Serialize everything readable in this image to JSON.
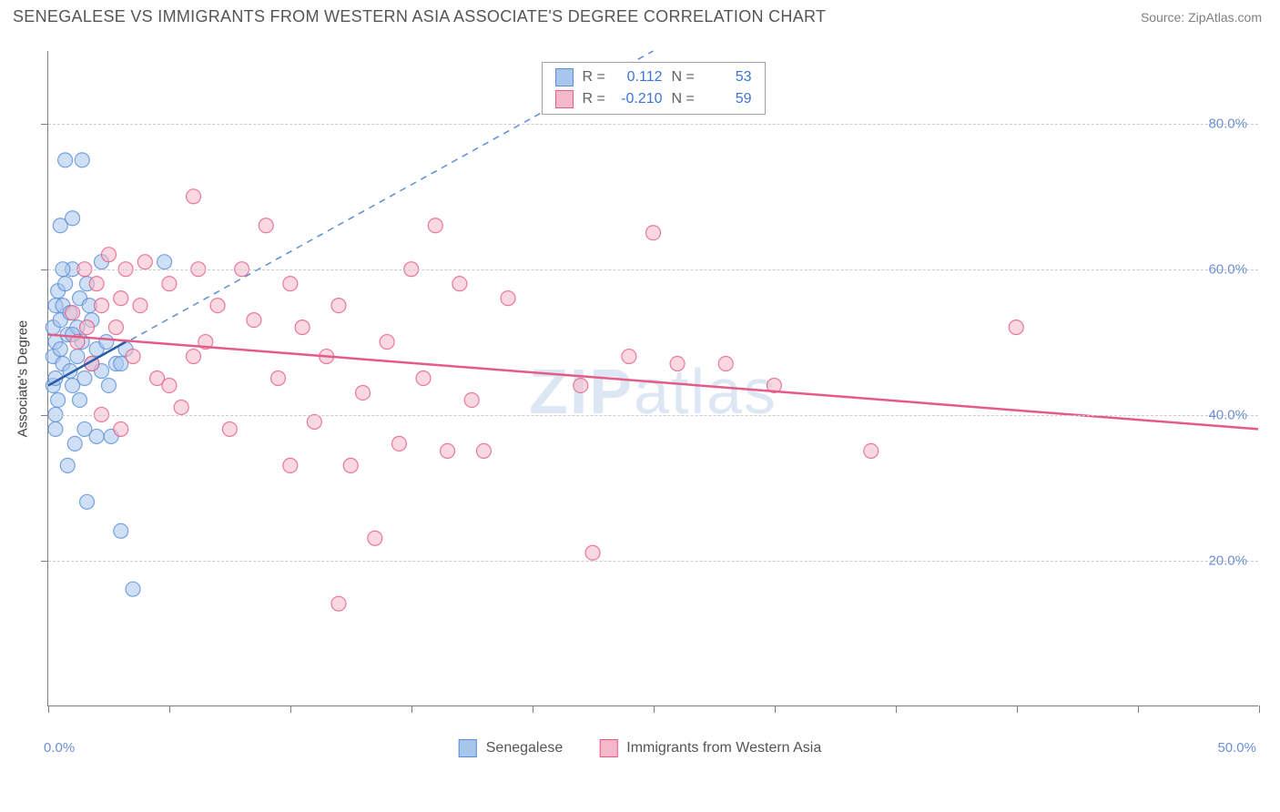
{
  "title": "SENEGALESE VS IMMIGRANTS FROM WESTERN ASIA ASSOCIATE'S DEGREE CORRELATION CHART",
  "source": "Source: ZipAtlas.com",
  "watermark_a": "ZIP",
  "watermark_b": "atlas",
  "chart": {
    "type": "scatter",
    "ylabel": "Associate's Degree",
    "xlim": [
      0,
      50
    ],
    "ylim": [
      0,
      90
    ],
    "x_ticks": [
      0,
      5,
      10,
      15,
      20,
      25,
      30,
      35,
      40,
      45,
      50
    ],
    "x_tick_labels_shown": {
      "0": "0.0%",
      "50": "50.0%"
    },
    "y_gridlines": [
      20,
      40,
      60,
      80
    ],
    "y_tick_labels": {
      "20": "20.0%",
      "40": "40.0%",
      "60": "60.0%",
      "80": "80.0%"
    },
    "background_color": "#ffffff",
    "grid_color": "#cccccc",
    "axis_color": "#808080",
    "tick_label_color": "#6a8fd4",
    "marker_radius": 8,
    "marker_opacity": 0.55,
    "series": [
      {
        "name": "Senegalese",
        "color_fill": "#a8c5ec",
        "color_stroke": "#5a8fd6",
        "r_value": "0.112",
        "n_value": "53",
        "trend": {
          "x1": 0,
          "y1": 44,
          "x2": 3.2,
          "y2": 50,
          "color": "#2a5da8",
          "width": 2.5
        },
        "guide": {
          "x1": 0,
          "y1": 44,
          "x2": 25,
          "y2": 90,
          "color": "#5a8fd6",
          "dash": true
        },
        "points": [
          [
            0.2,
            48
          ],
          [
            0.2,
            44
          ],
          [
            0.2,
            52
          ],
          [
            0.3,
            55
          ],
          [
            0.3,
            40
          ],
          [
            0.3,
            45
          ],
          [
            0.3,
            38
          ],
          [
            0.3,
            50
          ],
          [
            0.4,
            57
          ],
          [
            0.5,
            66
          ],
          [
            0.5,
            53
          ],
          [
            0.5,
            49
          ],
          [
            0.6,
            55
          ],
          [
            0.6,
            47
          ],
          [
            0.7,
            75
          ],
          [
            0.7,
            58
          ],
          [
            0.8,
            51
          ],
          [
            0.8,
            33
          ],
          [
            0.9,
            46
          ],
          [
            0.9,
            54
          ],
          [
            1.0,
            67
          ],
          [
            1.0,
            60
          ],
          [
            1.0,
            44
          ],
          [
            1.1,
            36
          ],
          [
            1.2,
            52
          ],
          [
            1.2,
            48
          ],
          [
            1.3,
            56
          ],
          [
            1.4,
            75
          ],
          [
            1.4,
            50
          ],
          [
            1.5,
            38
          ],
          [
            1.5,
            45
          ],
          [
            1.6,
            58
          ],
          [
            1.6,
            28
          ],
          [
            1.8,
            53
          ],
          [
            1.8,
            47
          ],
          [
            2.0,
            49
          ],
          [
            2.0,
            37
          ],
          [
            2.2,
            61
          ],
          [
            2.2,
            46
          ],
          [
            2.4,
            50
          ],
          [
            2.5,
            44
          ],
          [
            2.6,
            37
          ],
          [
            2.8,
            47
          ],
          [
            3.0,
            47
          ],
          [
            3.0,
            24
          ],
          [
            3.2,
            49
          ],
          [
            1.0,
            51
          ],
          [
            1.3,
            42
          ],
          [
            1.7,
            55
          ],
          [
            0.4,
            42
          ],
          [
            0.6,
            60
          ],
          [
            3.5,
            16
          ],
          [
            4.8,
            61
          ]
        ]
      },
      {
        "name": "Immigants from Western Asia",
        "legend_label": "Immigrants from Western Asia",
        "color_fill": "#f5b8c8",
        "color_stroke": "#e65a87",
        "r_value": "-0.210",
        "n_value": "59",
        "trend": {
          "x1": 0,
          "y1": 51,
          "x2": 50,
          "y2": 38,
          "color": "#e65a87",
          "width": 2.5
        },
        "points": [
          [
            1.0,
            54
          ],
          [
            1.2,
            50
          ],
          [
            1.5,
            60
          ],
          [
            1.6,
            52
          ],
          [
            1.8,
            47
          ],
          [
            2.0,
            58
          ],
          [
            2.2,
            55
          ],
          [
            2.2,
            40
          ],
          [
            2.5,
            62
          ],
          [
            2.8,
            52
          ],
          [
            3.0,
            56
          ],
          [
            3.0,
            38
          ],
          [
            3.2,
            60
          ],
          [
            3.5,
            48
          ],
          [
            3.8,
            55
          ],
          [
            4.0,
            61
          ],
          [
            4.5,
            45
          ],
          [
            5.0,
            58
          ],
          [
            5.5,
            41
          ],
          [
            6.0,
            70
          ],
          [
            6.2,
            60
          ],
          [
            6.5,
            50
          ],
          [
            7.0,
            55
          ],
          [
            7.5,
            38
          ],
          [
            8.0,
            60
          ],
          [
            8.5,
            53
          ],
          [
            9.0,
            66
          ],
          [
            9.5,
            45
          ],
          [
            10.0,
            33
          ],
          [
            10.5,
            52
          ],
          [
            11.0,
            39
          ],
          [
            11.5,
            48
          ],
          [
            12.0,
            55
          ],
          [
            12.0,
            14
          ],
          [
            12.5,
            33
          ],
          [
            13.0,
            43
          ],
          [
            13.5,
            23
          ],
          [
            14.0,
            50
          ],
          [
            14.5,
            36
          ],
          [
            15.0,
            60
          ],
          [
            15.5,
            45
          ],
          [
            16.0,
            66
          ],
          [
            16.5,
            35
          ],
          [
            17.0,
            58
          ],
          [
            17.5,
            42
          ],
          [
            18.0,
            35
          ],
          [
            19.0,
            56
          ],
          [
            22.0,
            44
          ],
          [
            22.5,
            21
          ],
          [
            24.0,
            48
          ],
          [
            25.0,
            65
          ],
          [
            26.0,
            47
          ],
          [
            28.0,
            47
          ],
          [
            30.0,
            44
          ],
          [
            34.0,
            35
          ],
          [
            40.0,
            52
          ],
          [
            5.0,
            44
          ],
          [
            6.0,
            48
          ],
          [
            10.0,
            58
          ]
        ]
      }
    ],
    "stats_labels": {
      "r": "R  =",
      "n": "N  ="
    }
  }
}
